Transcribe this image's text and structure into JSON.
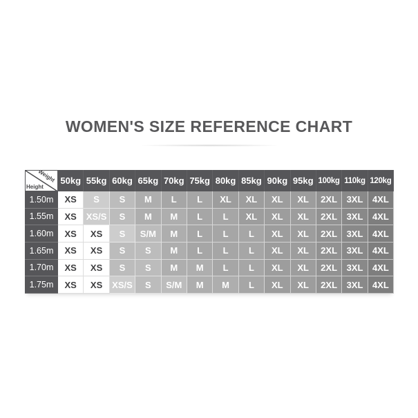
{
  "chart_data": {
    "type": "table",
    "title": "WOMEN'S SIZE REFERENCE CHART",
    "corner": {
      "top_right": "Weight",
      "bottom_left": "Height"
    },
    "columns": [
      "50kg",
      "55kg",
      "60kg",
      "65kg",
      "70kg",
      "75kg",
      "80kg",
      "85kg",
      "90kg",
      "95kg",
      "100kg",
      "110kg",
      "120kg"
    ],
    "rows": [
      {
        "height": "1.50m",
        "sizes": [
          "XS",
          "S",
          "S",
          "M",
          "L",
          "L",
          "XL",
          "XL",
          "XL",
          "XL",
          "2XL",
          "3XL",
          "4XL"
        ],
        "tones": [
          "w",
          "t1",
          "t2",
          "t3",
          "t4",
          "t4",
          "t5",
          "t5",
          "t5",
          "t5",
          "t6",
          "t7",
          "t8"
        ]
      },
      {
        "height": "1.55m",
        "sizes": [
          "XS",
          "XS/S",
          "S",
          "M",
          "M",
          "L",
          "L",
          "XL",
          "XL",
          "XL",
          "2XL",
          "3XL",
          "4XL"
        ],
        "tones": [
          "w",
          "t1",
          "t2",
          "t3",
          "t3",
          "t4",
          "t4",
          "t5",
          "t5",
          "t5",
          "t6",
          "t7",
          "t8"
        ]
      },
      {
        "height": "1.60m",
        "sizes": [
          "XS",
          "XS",
          "S",
          "S/M",
          "M",
          "L",
          "L",
          "L",
          "XL",
          "XL",
          "2XL",
          "3XL",
          "4XL"
        ],
        "tones": [
          "w",
          "w",
          "t1",
          "t2",
          "t3",
          "t4",
          "t4",
          "t4",
          "t5",
          "t5",
          "t6",
          "t7",
          "t8"
        ]
      },
      {
        "height": "1.65m",
        "sizes": [
          "XS",
          "XS",
          "S",
          "S",
          "M",
          "L",
          "L",
          "L",
          "XL",
          "XL",
          "2XL",
          "3XL",
          "4XL"
        ],
        "tones": [
          "w",
          "w",
          "t2",
          "t2",
          "t3",
          "t4",
          "t4",
          "t4",
          "t5",
          "t5",
          "t6",
          "t7",
          "t8"
        ]
      },
      {
        "height": "1.70m",
        "sizes": [
          "XS",
          "XS",
          "S",
          "S",
          "M",
          "M",
          "L",
          "L",
          "XL",
          "XL",
          "2XL",
          "3XL",
          "4XL"
        ],
        "tones": [
          "w",
          "w",
          "t2",
          "t2",
          "t3",
          "t3",
          "t4",
          "t4",
          "t5",
          "t5",
          "t6",
          "t7",
          "t8"
        ]
      },
      {
        "height": "1.75m",
        "sizes": [
          "XS",
          "XS",
          "XS/S",
          "S",
          "S/M",
          "M",
          "M",
          "L",
          "XL",
          "XL",
          "2XL",
          "3XL",
          "4XL"
        ],
        "tones": [
          "w",
          "w",
          "t1",
          "t2",
          "t2",
          "t3",
          "t3",
          "t4",
          "t5",
          "t5",
          "t6",
          "t7",
          "t8"
        ]
      }
    ],
    "tone_colors": {
      "w": "#ffffff",
      "t1": "#cdcdcd",
      "t2": "#bcbcbc",
      "t3": "#aeaeae",
      "t4": "#a6a6a6",
      "t5": "#9d9d9d",
      "t6": "#929292",
      "t7": "#898989",
      "t8": "#7e7e7e"
    },
    "header_bg": "#565659",
    "text_light": "#ffffff",
    "text_dark": "#3d3d3f",
    "title_color": "#58585a"
  }
}
